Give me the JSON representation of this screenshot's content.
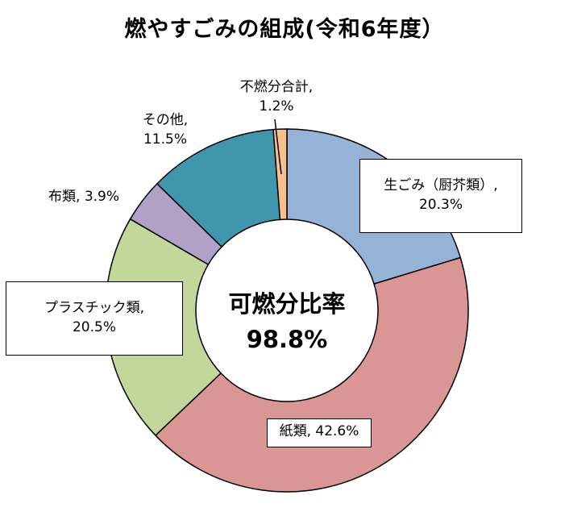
{
  "chart_data": {
    "type": "pie",
    "title": "燃やすごみの組成(令和6年度）",
    "slices": [
      {
        "name": "生ごみ（厨芥類）",
        "value": 20.3,
        "label_value": "20.3%",
        "color": "#95b3d7"
      },
      {
        "name": "紙類",
        "value": 42.6,
        "label_value": "42.6%",
        "color": "#da9694"
      },
      {
        "name": "プラスチック類",
        "value": 20.5,
        "label_value": "20.5%",
        "color": "#c4d79b"
      },
      {
        "name": "布類",
        "value": 3.9,
        "label_value": "3.9%",
        "color": "#b1a0c7"
      },
      {
        "name": "その他",
        "value": 11.5,
        "label_value": "11.5%",
        "color": "#4096ac"
      },
      {
        "name": "不燃分合計",
        "value": 1.2,
        "label_value": "1.2%",
        "color": "#fabf8f"
      }
    ],
    "center_label": "可燃分比率",
    "center_value": "98.8%"
  }
}
